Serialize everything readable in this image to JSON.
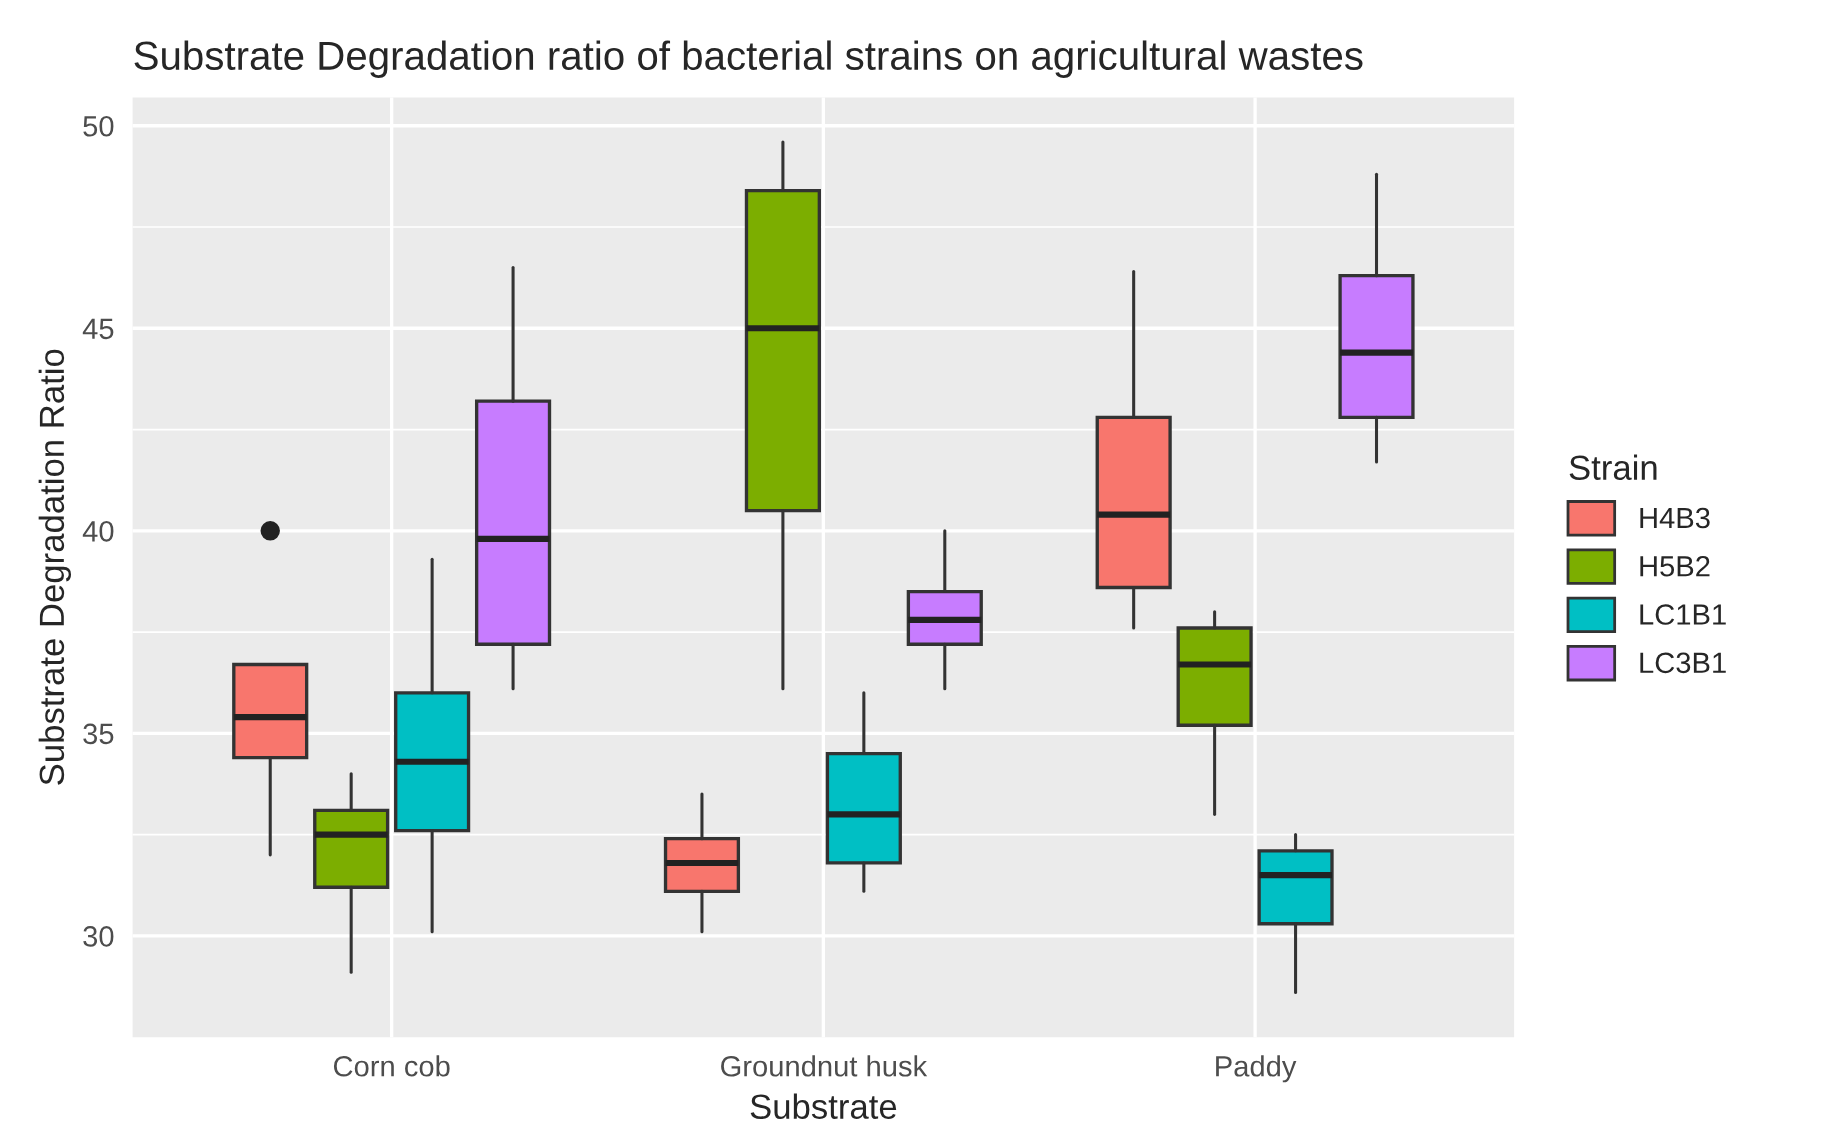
{
  "chart_data": {
    "type": "box",
    "title": "Substrate Degradation ratio of bacterial strains on agricultural wastes",
    "xlabel": "Substrate",
    "ylabel": "Substrate Degradation Ratio",
    "legend_title": "Strain",
    "legend": "right",
    "grid": true,
    "categories": [
      "Corn cob",
      "Groundnut husk",
      "Paddy"
    ],
    "ylim": [
      27.5,
      50.7
    ],
    "yticks": [
      30,
      35,
      40,
      45,
      50
    ],
    "series": [
      {
        "name": "H4B3",
        "color": "#f8766d",
        "boxes": [
          {
            "low": 32.0,
            "q1": 34.4,
            "median": 35.4,
            "q3": 36.7,
            "high": 36.7,
            "outliers": [
              40.0
            ]
          },
          {
            "low": 30.1,
            "q1": 31.1,
            "median": 31.8,
            "q3": 32.4,
            "high": 33.5
          },
          {
            "low": 37.6,
            "q1": 38.6,
            "median": 40.4,
            "q3": 42.8,
            "high": 46.4
          }
        ]
      },
      {
        "name": "H5B2",
        "color": "#7cae00",
        "boxes": [
          {
            "low": 29.1,
            "q1": 31.2,
            "median": 32.5,
            "q3": 33.1,
            "high": 34.0
          },
          {
            "low": 36.1,
            "q1": 40.5,
            "median": 45.0,
            "q3": 48.4,
            "high": 49.6
          },
          {
            "low": 33.0,
            "q1": 35.2,
            "median": 36.7,
            "q3": 37.6,
            "high": 38.0
          }
        ]
      },
      {
        "name": "LC1B1",
        "color": "#00bfc4",
        "boxes": [
          {
            "low": 30.1,
            "q1": 32.6,
            "median": 34.3,
            "q3": 36.0,
            "high": 39.3
          },
          {
            "low": 31.1,
            "q1": 31.8,
            "median": 33.0,
            "q3": 34.5,
            "high": 36.0
          },
          {
            "low": 28.6,
            "q1": 30.3,
            "median": 31.5,
            "q3": 32.1,
            "high": 32.5
          }
        ]
      },
      {
        "name": "LC3B1",
        "color": "#c77cff",
        "boxes": [
          {
            "low": 36.1,
            "q1": 37.2,
            "median": 39.8,
            "q3": 43.2,
            "high": 46.5
          },
          {
            "low": 36.1,
            "q1": 37.2,
            "median": 37.8,
            "q3": 38.5,
            "high": 40.0
          },
          {
            "low": 41.7,
            "q1": 42.8,
            "median": 44.4,
            "q3": 46.3,
            "high": 48.8
          }
        ]
      }
    ]
  }
}
